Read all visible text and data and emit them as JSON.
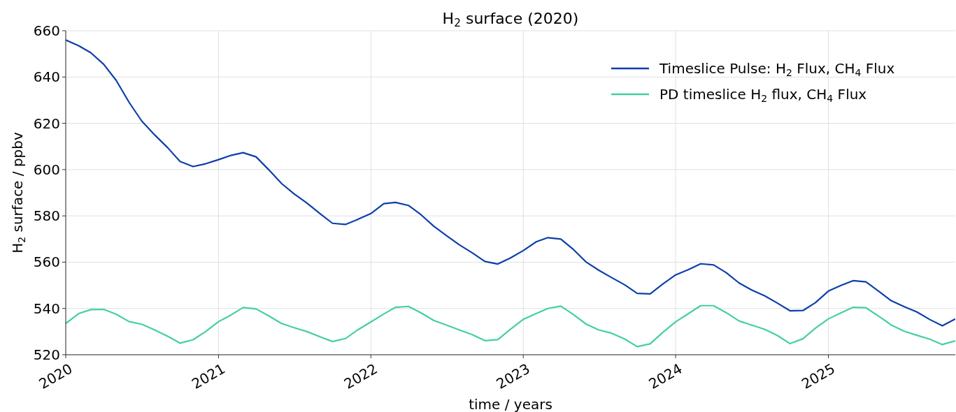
{
  "chart_data": {
    "type": "line",
    "title": "H$_{2}$ surface (2020)",
    "xlabel": "time / years",
    "ylabel": "H$_{2}$ surface / ppbv",
    "x": [
      "2020-01",
      "2020-02",
      "2020-03",
      "2020-04",
      "2020-05",
      "2020-06",
      "2020-07",
      "2020-08",
      "2020-09",
      "2020-10",
      "2020-11",
      "2020-12",
      "2021-01",
      "2021-02",
      "2021-03",
      "2021-04",
      "2021-05",
      "2021-06",
      "2021-07",
      "2021-08",
      "2021-09",
      "2021-10",
      "2021-11",
      "2021-12",
      "2022-01",
      "2022-02",
      "2022-03",
      "2022-04",
      "2022-05",
      "2022-06",
      "2022-07",
      "2022-08",
      "2022-09",
      "2022-10",
      "2022-11",
      "2022-12",
      "2023-01",
      "2023-02",
      "2023-03",
      "2023-04",
      "2023-05",
      "2023-06",
      "2023-07",
      "2023-08",
      "2023-09",
      "2023-10",
      "2023-11",
      "2023-12",
      "2024-01",
      "2024-02",
      "2024-03",
      "2024-04",
      "2024-05",
      "2024-06",
      "2024-07",
      "2024-08",
      "2024-09",
      "2024-10",
      "2024-11",
      "2024-12",
      "2025-01",
      "2025-02",
      "2025-03",
      "2025-04",
      "2025-05",
      "2025-06",
      "2025-07",
      "2025-08",
      "2025-09",
      "2025-10",
      "2025-11"
    ],
    "series": [
      {
        "name": "Timeslice Pulse: H$_{2}$ Flux, CH$_{4}$ Flux",
        "color": "#0d3fab",
        "values": [
          656,
          653.5,
          650.5,
          645.5,
          638.5,
          629,
          621,
          615,
          609.5,
          603.5,
          601.3,
          602.5,
          604.3,
          606.2,
          607.3,
          605.5,
          600,
          594,
          589.5,
          585.5,
          581,
          576.8,
          576.3,
          578.5,
          581,
          585.3,
          585.8,
          584.5,
          580.5,
          575.5,
          571.5,
          567.5,
          564,
          560.3,
          559.2,
          561.8,
          565,
          568.8,
          570.6,
          570,
          565.5,
          560,
          556.5,
          553.3,
          550.2,
          546.5,
          546.3,
          550.5,
          554.5,
          556.8,
          559.3,
          558.8,
          555.5,
          551,
          548,
          545.5,
          542.3,
          539,
          539.1,
          542.5,
          547.5,
          550,
          552,
          551.5,
          547.5,
          543.3,
          540.8,
          538.5,
          535.2,
          532.5,
          535.5
        ]
      },
      {
        "name": "PD timeslice H$_{2}$ flux, CH$_{4}$ Flux",
        "color": "#45d09e",
        "values": [
          533.5,
          537.8,
          539.5,
          539.6,
          537.5,
          534.3,
          533.2,
          530.7,
          528,
          525,
          526.5,
          530,
          534.3,
          537.3,
          540.4,
          539.8,
          536.8,
          533.5,
          531.7,
          530,
          527.8,
          525.7,
          527,
          530.8,
          534.2,
          537.6,
          540.5,
          540.9,
          538.1,
          534.8,
          532.8,
          530.7,
          528.7,
          526.1,
          526.5,
          531,
          535.3,
          537.8,
          540,
          541,
          537.4,
          533.2,
          530.7,
          529.3,
          526.8,
          523.5,
          524.7,
          529.6,
          534.2,
          537.8,
          541.2,
          541.2,
          538.2,
          534.6,
          532.8,
          531,
          528.3,
          524.8,
          526.9,
          531.5,
          535.5,
          538.2,
          540.5,
          540.3,
          536.7,
          532.8,
          530.2,
          528.4,
          526.7,
          524.4,
          526
        ]
      }
    ],
    "xlim": [
      "2020-01",
      "2025-11"
    ],
    "xticks": [
      {
        "value": "2020-01",
        "label": "2020"
      },
      {
        "value": "2021-01",
        "label": "2021"
      },
      {
        "value": "2022-01",
        "label": "2022"
      },
      {
        "value": "2023-01",
        "label": "2023"
      },
      {
        "value": "2024-01",
        "label": "2024"
      },
      {
        "value": "2025-01",
        "label": "2025"
      }
    ],
    "ylim": [
      520,
      660
    ],
    "yticks": [
      520,
      540,
      560,
      580,
      600,
      620,
      640,
      660
    ],
    "grid": true,
    "legend": "top right",
    "line_style": "solid",
    "marker": "none"
  }
}
